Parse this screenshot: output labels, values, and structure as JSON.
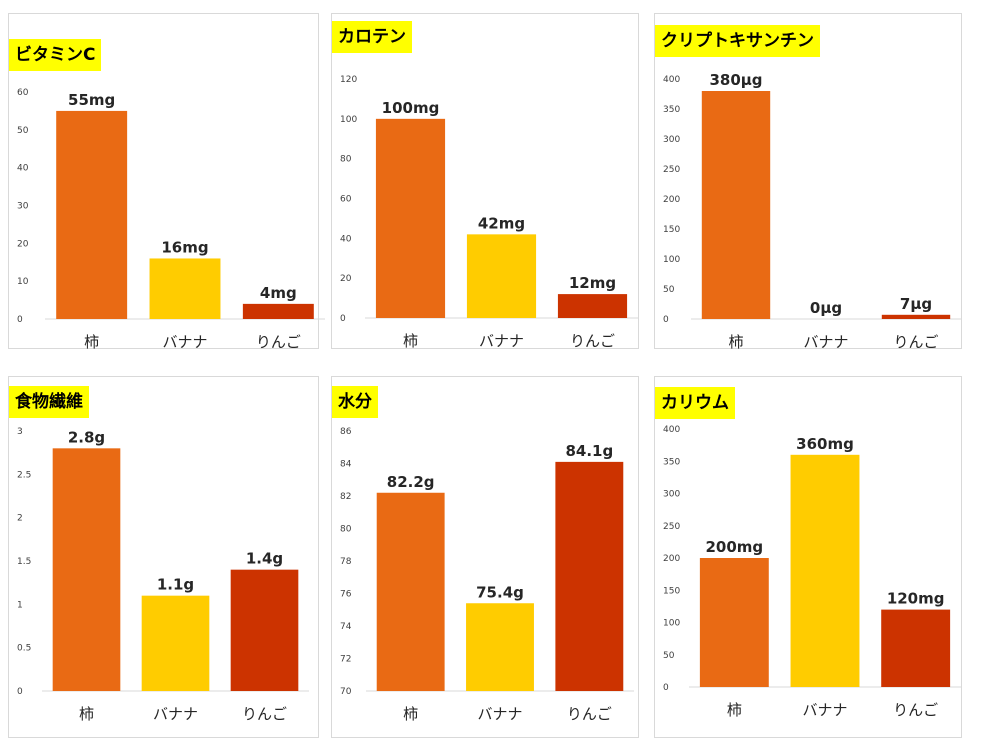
{
  "colors": {
    "persimmon": "#E96A14",
    "banana": "#FFCC00",
    "apple": "#CC3300",
    "title_bg": "#FFFF00",
    "axis": "#d9d9d9"
  },
  "chart_data": [
    {
      "type": "bar",
      "title": "ビタミンC",
      "categories": [
        "柿",
        "バナナ",
        "りんご"
      ],
      "values": [
        55,
        16,
        4
      ],
      "labels": [
        "55mg",
        "16mg",
        "4mg"
      ],
      "ylim": [
        0,
        60
      ],
      "yticks": [
        0,
        10,
        20,
        30,
        40,
        50,
        60
      ],
      "yticklabels": [
        "0",
        "10",
        "20",
        "30",
        "40",
        "50",
        "60"
      ]
    },
    {
      "type": "bar",
      "title": "カロテン",
      "categories": [
        "柿",
        "バナナ",
        "りんご"
      ],
      "values": [
        100,
        42,
        12
      ],
      "labels": [
        "100mg",
        "42mg",
        "12mg"
      ],
      "ylim": [
        0,
        120
      ],
      "yticks": [
        0,
        20,
        40,
        60,
        80,
        100,
        120
      ],
      "yticklabels": [
        "0",
        "20",
        "40",
        "60",
        "80",
        "100",
        "120"
      ]
    },
    {
      "type": "bar",
      "title": "クリプトキサンチン",
      "categories": [
        "柿",
        "バナナ",
        "りんご"
      ],
      "values": [
        380,
        0,
        7
      ],
      "labels": [
        "380μg",
        "0μg",
        "7μg"
      ],
      "ylim": [
        0,
        400
      ],
      "yticks": [
        0,
        50,
        100,
        150,
        200,
        250,
        300,
        350,
        400
      ],
      "yticklabels": [
        "0",
        "50",
        "100",
        "150",
        "200",
        "250",
        "300",
        "350",
        "400"
      ]
    },
    {
      "type": "bar",
      "title": "食物繊維",
      "categories": [
        "柿",
        "バナナ",
        "りんご"
      ],
      "values": [
        2.8,
        1.1,
        1.4
      ],
      "labels": [
        "2.8g",
        "1.1g",
        "1.4g"
      ],
      "ylim": [
        0,
        3
      ],
      "yticks": [
        0,
        0.5,
        1,
        1.5,
        2,
        2.5,
        3
      ],
      "yticklabels": [
        "0",
        "0.5",
        "1",
        "1.5",
        "2",
        "2.5",
        "3"
      ]
    },
    {
      "type": "bar",
      "title": "水分",
      "categories": [
        "柿",
        "バナナ",
        "りんご"
      ],
      "values": [
        82.2,
        75.4,
        84.1
      ],
      "labels": [
        "82.2g",
        "75.4g",
        "84.1g"
      ],
      "ylim": [
        70,
        86
      ],
      "yticks": [
        70,
        72,
        74,
        76,
        78,
        80,
        82,
        84,
        86
      ],
      "yticklabels": [
        "70",
        "72",
        "74",
        "76",
        "78",
        "80",
        "82",
        "84",
        "86"
      ]
    },
    {
      "type": "bar",
      "title": "カリウム",
      "categories": [
        "柿",
        "バナナ",
        "りんご"
      ],
      "values": [
        200,
        360,
        120
      ],
      "labels": [
        "200mg",
        "360mg",
        "120mg"
      ],
      "ylim": [
        0,
        400
      ],
      "yticks": [
        0,
        50,
        100,
        150,
        200,
        250,
        300,
        350,
        400
      ],
      "yticklabels": [
        "0",
        "50",
        "100",
        "150",
        "200",
        "250",
        "300",
        "350",
        "400"
      ]
    }
  ]
}
